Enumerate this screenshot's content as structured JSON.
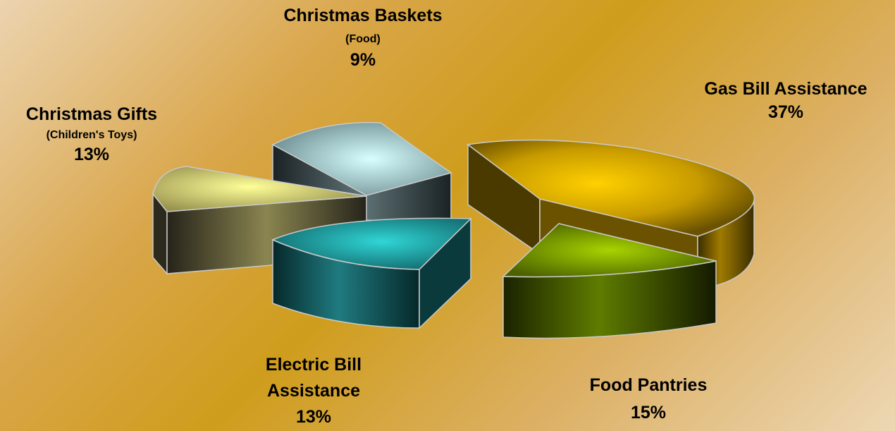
{
  "chart_data": {
    "type": "pie",
    "title": "",
    "slices": [
      {
        "label": "Gas Bill Assistance",
        "sublabel": "",
        "value": 37,
        "value_label": "37%",
        "color": "#e6b400"
      },
      {
        "label": "Food Pantries",
        "sublabel": "",
        "value": 15,
        "value_label": "15%",
        "color": "#7a9a00"
      },
      {
        "label": "Electric Bill Assistance",
        "sublabel": "",
        "value": 13,
        "value_label": "13%",
        "color": "#1e8f93"
      },
      {
        "label": "Christmas Gifts",
        "sublabel": "(Children's Toys)",
        "value": 13,
        "value_label": "13%",
        "color": "#d9d17a"
      },
      {
        "label": "Christmas Baskets",
        "sublabel": "(Food)",
        "value": 9,
        "value_label": "9%",
        "color": "#8fb9bd"
      }
    ],
    "labels": {
      "gas_line1": "Gas Bill Assistance",
      "gas_pct": "37%",
      "food_line1": "Food Pantries",
      "food_pct": "15%",
      "electric_line1": "Electric Bill",
      "electric_line2": "Assistance",
      "electric_pct": "13%",
      "gifts_line1": "Christmas Gifts",
      "gifts_sub": "(Children's Toys)",
      "gifts_pct": "13%",
      "baskets_line1": "Christmas Baskets",
      "baskets_sub": "(Food)",
      "baskets_pct": "9%"
    }
  }
}
